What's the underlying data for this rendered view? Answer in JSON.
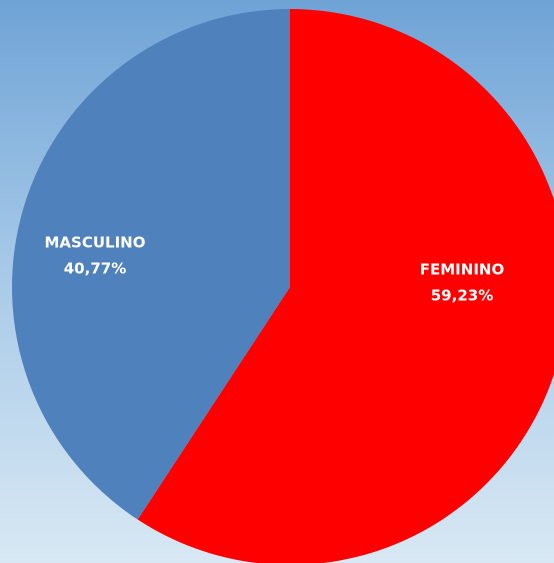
{
  "chart_data": {
    "type": "pie",
    "categories": [
      "FEMININO",
      "MASCULINO"
    ],
    "values": [
      59.23,
      40.77
    ],
    "value_labels": [
      "59,23%",
      "40,77%"
    ],
    "colors": [
      "#ff0000",
      "#4f81bd"
    ]
  }
}
